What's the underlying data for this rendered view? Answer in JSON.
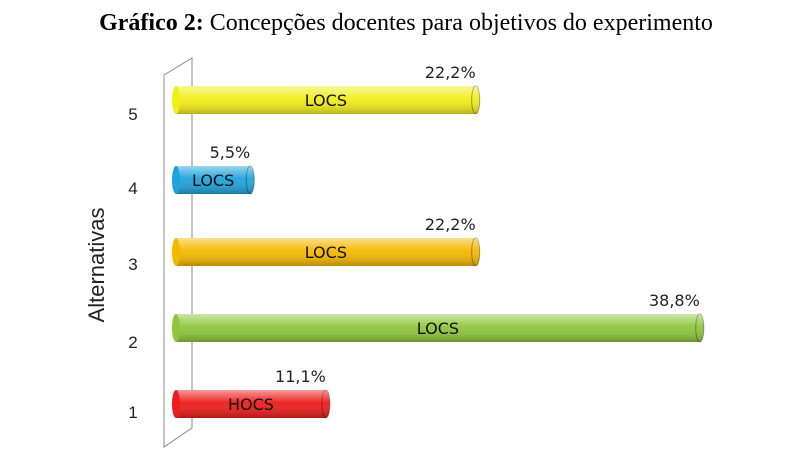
{
  "chart_data": {
    "type": "bar",
    "orientation": "horizontal",
    "title_prefix": "Gráfico  2:",
    "title": "Concepções docentes para objetivos do experimento",
    "ylabel": "Alternativas",
    "xlabel": "",
    "categories": [
      "1",
      "2",
      "3",
      "4",
      "5"
    ],
    "values": [
      11.1,
      38.8,
      22.2,
      5.5,
      22.2
    ],
    "value_labels": [
      "11,1%",
      "38,8%",
      "22,2%",
      "5,5%",
      "22,2%"
    ],
    "bar_labels": [
      "HOCS",
      "LOCS",
      "LOCS",
      "LOCS",
      "LOCS"
    ],
    "colors": [
      "#ee1c1c",
      "#8fc63e",
      "#f5b800",
      "#1fa3dc",
      "#f2ee1a"
    ],
    "xlim": [
      0,
      40
    ],
    "grid": false,
    "legend": "none"
  }
}
